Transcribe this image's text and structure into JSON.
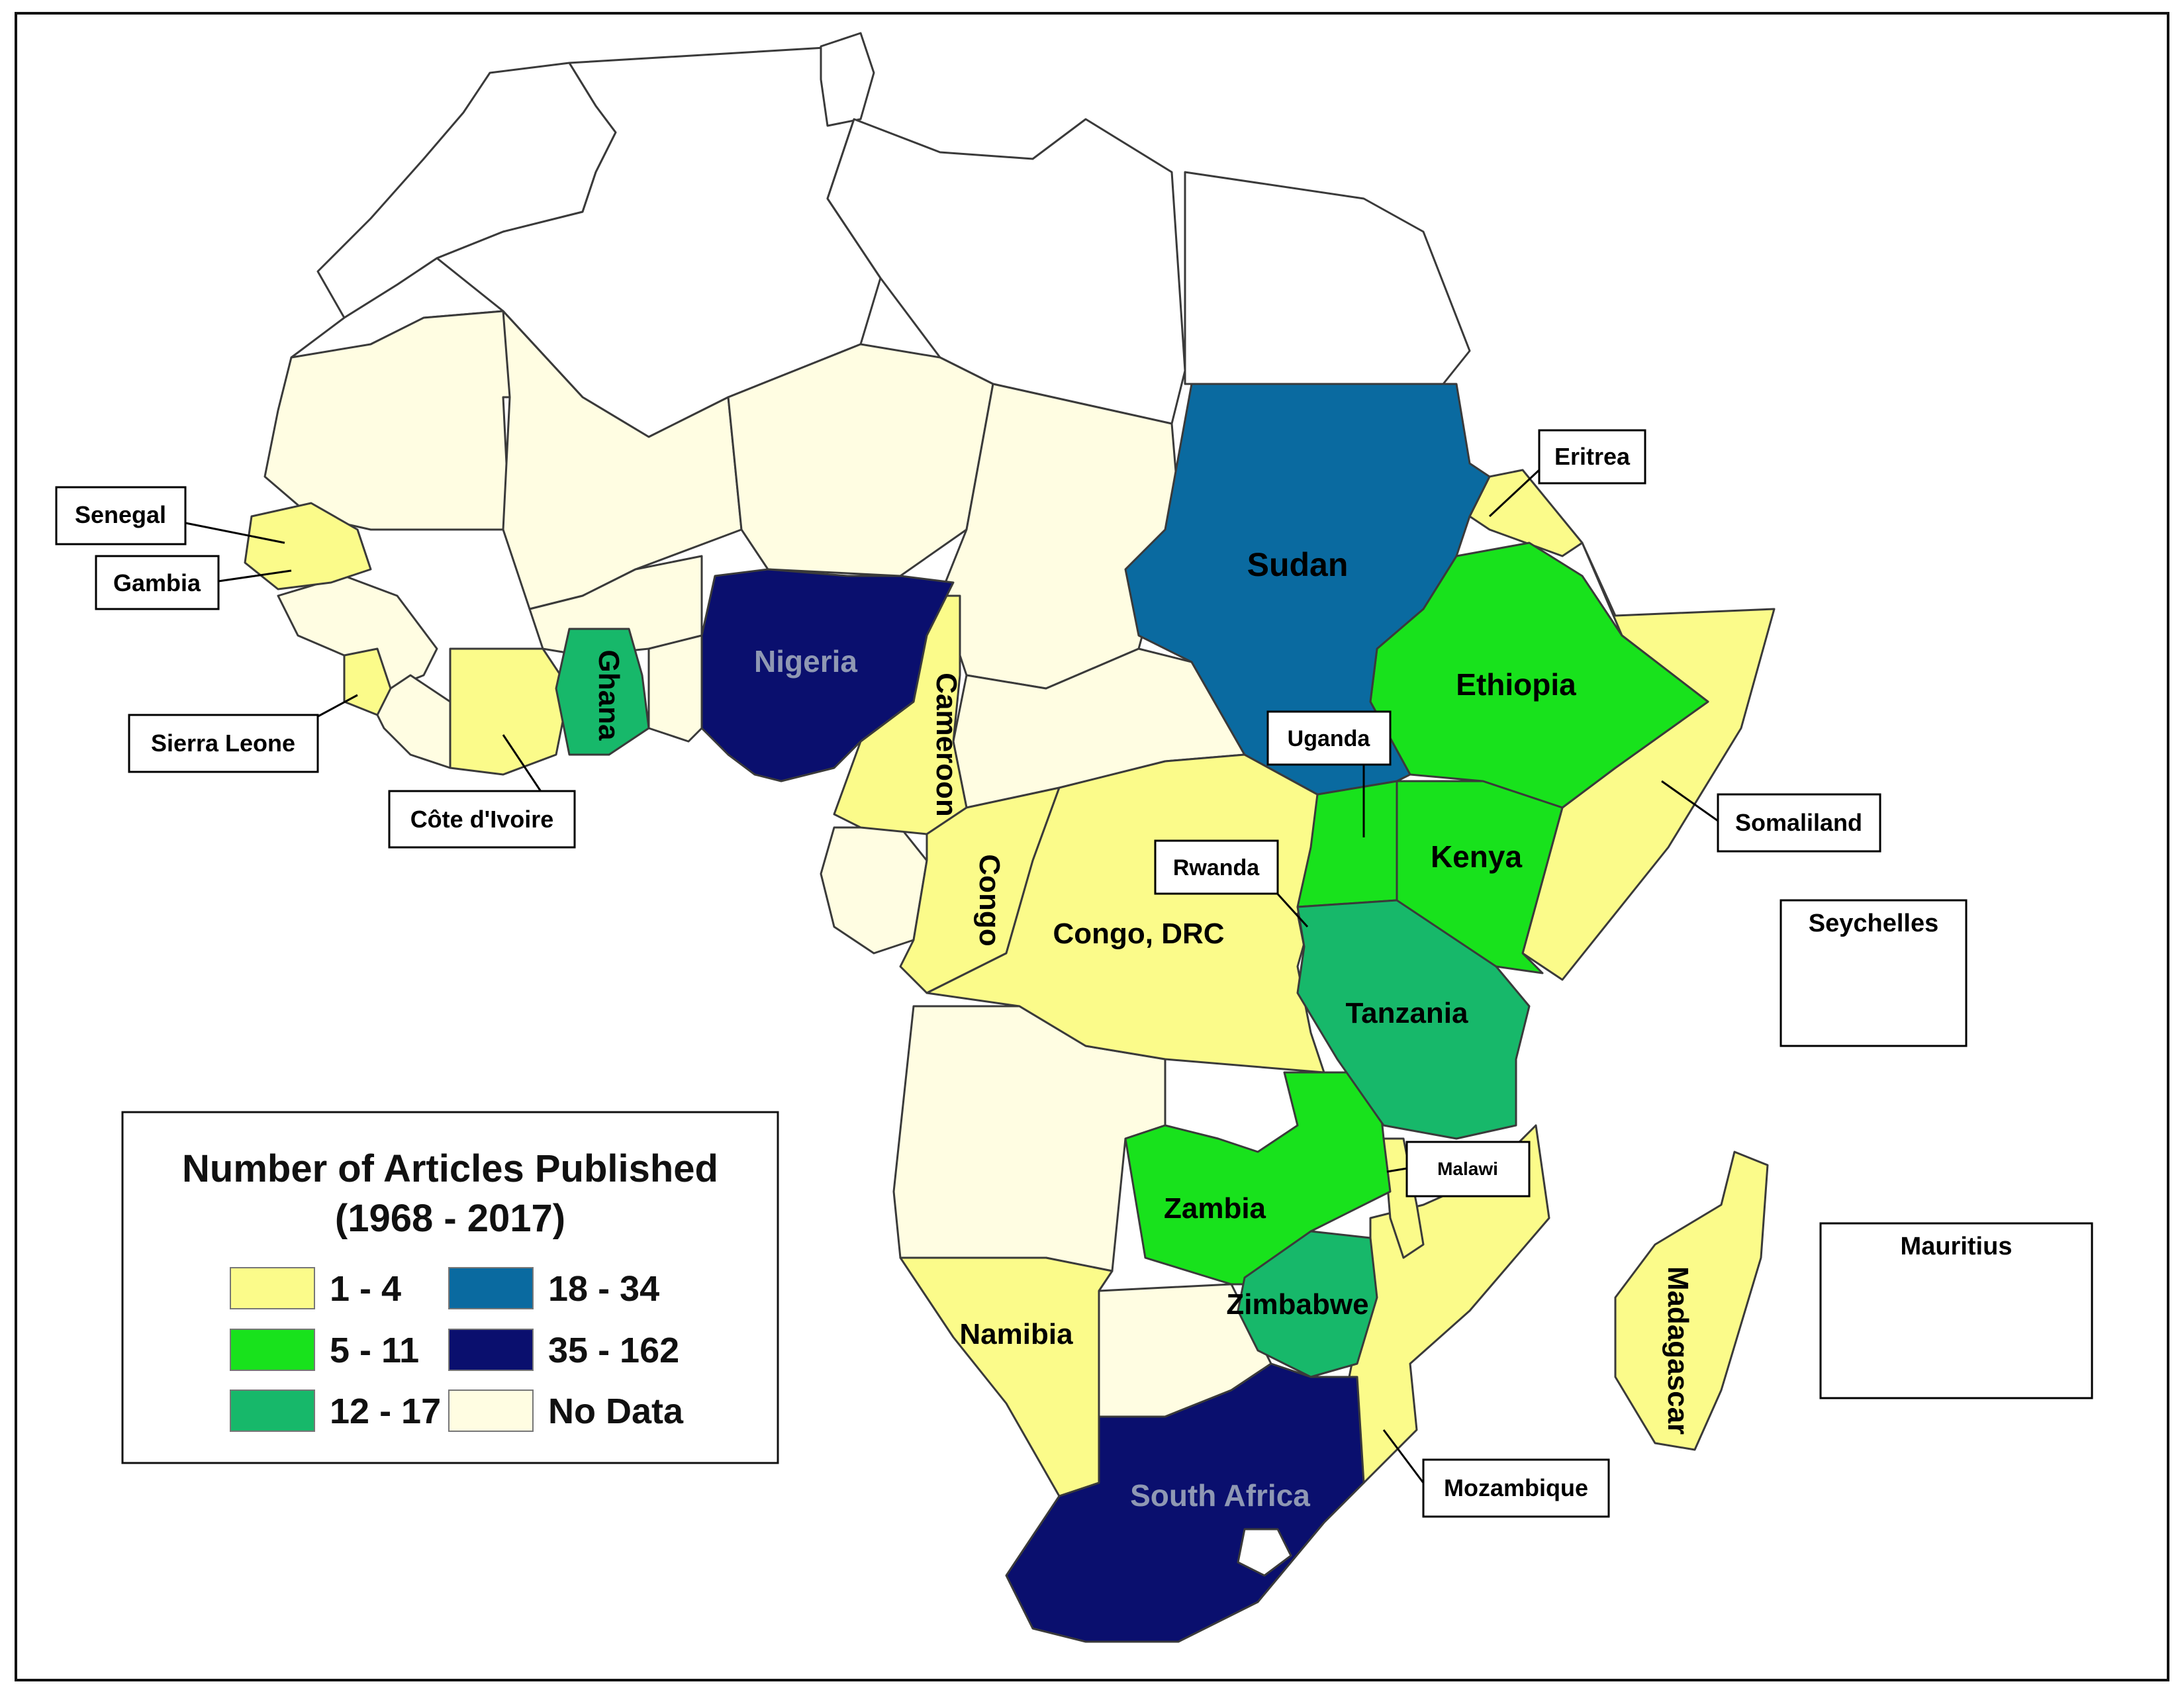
{
  "colors": {
    "c1_4": "#fbfb8a",
    "c5_11": "#18e21c",
    "c12_17": "#17b86a",
    "c18_34": "#0a6aa0",
    "c35_162": "#0a0f6e",
    "no_data": "#fffde2",
    "outside": "#ffffff",
    "light_label": "#8f98b3"
  },
  "legend": {
    "title_line1": "Number of Articles Published",
    "title_line2": "(1968 - 2017)",
    "items": [
      {
        "label": "1 - 4",
        "color_key": "c1_4"
      },
      {
        "label": "18 - 34",
        "color_key": "c18_34"
      },
      {
        "label": "5 - 11",
        "color_key": "c5_11"
      },
      {
        "label": "35 - 162",
        "color_key": "c35_162"
      },
      {
        "label": "12 - 17",
        "color_key": "c12_17"
      },
      {
        "label": "No Data",
        "color_key": "no_data"
      }
    ]
  },
  "countries": {
    "sudan": "Sudan",
    "ethiopia": "Ethiopia",
    "kenya": "Kenya",
    "tanzania": "Tanzania",
    "zambia": "Zambia",
    "zimbabwe": "Zimbabwe",
    "namibia": "Namibia",
    "south_africa": "South Africa",
    "madagascar": "Madagascar",
    "nigeria": "Nigeria",
    "ghana": "Ghana",
    "cameroon": "Cameroon",
    "congo": "Congo",
    "congo_drc": "Congo, DRC"
  },
  "callouts": {
    "eritrea": "Eritrea",
    "senegal": "Senegal",
    "gambia": "Gambia",
    "sierra_leone": "Sierra Leone",
    "cote_divoire": "Côte d'Ivoire",
    "uganda": "Uganda",
    "rwanda": "Rwanda",
    "somaliland": "Somaliland",
    "malawi": "Malawi",
    "mozambique": "Mozambique",
    "seychelles": "Seychelles",
    "mauritius": "Mauritius"
  }
}
